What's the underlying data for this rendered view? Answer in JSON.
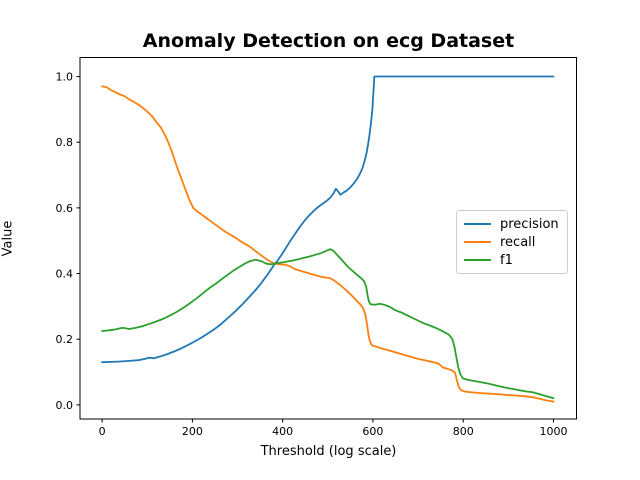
{
  "figure": {
    "title": "Anomaly Detection on ecg Dataset",
    "xlabel": "Threshold (log scale)",
    "ylabel": "Value"
  },
  "chart_data": {
    "type": "line",
    "title": "Anomaly Detection on ecg Dataset",
    "xlabel": "Threshold (log scale)",
    "ylabel": "Value",
    "xlim": [
      -49,
      1051
    ],
    "ylim": [
      -0.043,
      1.058
    ],
    "xticks": [
      0,
      200,
      400,
      600,
      800,
      1000
    ],
    "yticks": [
      0.0,
      0.2,
      0.4,
      0.6,
      0.8,
      1.0
    ],
    "grid": false,
    "legend_position": "center right",
    "frame_color": "#000000",
    "series": [
      {
        "name": "precision",
        "color": "#1f77b4",
        "points": [
          [
            0,
            0.13
          ],
          [
            20,
            0.131
          ],
          [
            40,
            0.132
          ],
          [
            60,
            0.134
          ],
          [
            80,
            0.136
          ],
          [
            95,
            0.14
          ],
          [
            105,
            0.144
          ],
          [
            115,
            0.142
          ],
          [
            130,
            0.148
          ],
          [
            145,
            0.155
          ],
          [
            160,
            0.163
          ],
          [
            175,
            0.172
          ],
          [
            190,
            0.182
          ],
          [
            205,
            0.193
          ],
          [
            220,
            0.205
          ],
          [
            235,
            0.218
          ],
          [
            250,
            0.232
          ],
          [
            265,
            0.248
          ],
          [
            280,
            0.266
          ],
          [
            295,
            0.285
          ],
          [
            310,
            0.305
          ],
          [
            325,
            0.327
          ],
          [
            340,
            0.35
          ],
          [
            352,
            0.37
          ],
          [
            364,
            0.392
          ],
          [
            374,
            0.412
          ],
          [
            382,
            0.428
          ],
          [
            390,
            0.442
          ],
          [
            398,
            0.458
          ],
          [
            408,
            0.48
          ],
          [
            418,
            0.502
          ],
          [
            428,
            0.522
          ],
          [
            438,
            0.542
          ],
          [
            448,
            0.56
          ],
          [
            458,
            0.576
          ],
          [
            468,
            0.59
          ],
          [
            478,
            0.602
          ],
          [
            488,
            0.612
          ],
          [
            498,
            0.622
          ],
          [
            506,
            0.632
          ],
          [
            513,
            0.645
          ],
          [
            518,
            0.658
          ],
          [
            523,
            0.65
          ],
          [
            528,
            0.64
          ],
          [
            534,
            0.646
          ],
          [
            541,
            0.652
          ],
          [
            548,
            0.66
          ],
          [
            556,
            0.672
          ],
          [
            564,
            0.686
          ],
          [
            571,
            0.703
          ],
          [
            577,
            0.722
          ],
          [
            582,
            0.745
          ],
          [
            586,
            0.768
          ],
          [
            589,
            0.792
          ],
          [
            592,
            0.818
          ],
          [
            594,
            0.84
          ],
          [
            596,
            0.862
          ],
          [
            598,
            0.888
          ],
          [
            599,
            0.905
          ],
          [
            600,
            0.93
          ],
          [
            601,
            0.952
          ],
          [
            602,
            0.97
          ],
          [
            603,
            1.0
          ],
          [
            650,
            1.0
          ],
          [
            750,
            1.0
          ],
          [
            850,
            1.0
          ],
          [
            950,
            1.0
          ],
          [
            1000,
            1.0
          ]
        ]
      },
      {
        "name": "recall",
        "color": "#ff7f0e",
        "points": [
          [
            0,
            0.97
          ],
          [
            10,
            0.968
          ],
          [
            20,
            0.958
          ],
          [
            30,
            0.952
          ],
          [
            40,
            0.945
          ],
          [
            50,
            0.94
          ],
          [
            60,
            0.93
          ],
          [
            70,
            0.923
          ],
          [
            80,
            0.915
          ],
          [
            90,
            0.905
          ],
          [
            100,
            0.893
          ],
          [
            110,
            0.88
          ],
          [
            120,
            0.862
          ],
          [
            130,
            0.845
          ],
          [
            140,
            0.82
          ],
          [
            148,
            0.795
          ],
          [
            155,
            0.77
          ],
          [
            162,
            0.74
          ],
          [
            170,
            0.71
          ],
          [
            178,
            0.68
          ],
          [
            186,
            0.65
          ],
          [
            194,
            0.622
          ],
          [
            202,
            0.6
          ],
          [
            212,
            0.588
          ],
          [
            222,
            0.578
          ],
          [
            232,
            0.568
          ],
          [
            242,
            0.558
          ],
          [
            252,
            0.548
          ],
          [
            262,
            0.538
          ],
          [
            272,
            0.528
          ],
          [
            282,
            0.52
          ],
          [
            292,
            0.512
          ],
          [
            302,
            0.503
          ],
          [
            312,
            0.494
          ],
          [
            322,
            0.486
          ],
          [
            332,
            0.477
          ],
          [
            342,
            0.466
          ],
          [
            352,
            0.456
          ],
          [
            360,
            0.448
          ],
          [
            368,
            0.44
          ],
          [
            376,
            0.434
          ],
          [
            384,
            0.43
          ],
          [
            395,
            0.428
          ],
          [
            405,
            0.427
          ],
          [
            415,
            0.423
          ],
          [
            425,
            0.415
          ],
          [
            435,
            0.41
          ],
          [
            445,
            0.406
          ],
          [
            455,
            0.402
          ],
          [
            465,
            0.398
          ],
          [
            475,
            0.394
          ],
          [
            485,
            0.39
          ],
          [
            495,
            0.388
          ],
          [
            505,
            0.386
          ],
          [
            515,
            0.378
          ],
          [
            525,
            0.368
          ],
          [
            535,
            0.356
          ],
          [
            545,
            0.344
          ],
          [
            555,
            0.33
          ],
          [
            565,
            0.316
          ],
          [
            572,
            0.306
          ],
          [
            578,
            0.295
          ],
          [
            583,
            0.275
          ],
          [
            587,
            0.245
          ],
          [
            590,
            0.215
          ],
          [
            593,
            0.195
          ],
          [
            597,
            0.182
          ],
          [
            605,
            0.178
          ],
          [
            615,
            0.174
          ],
          [
            625,
            0.17
          ],
          [
            640,
            0.164
          ],
          [
            655,
            0.158
          ],
          [
            670,
            0.152
          ],
          [
            685,
            0.146
          ],
          [
            700,
            0.14
          ],
          [
            715,
            0.136
          ],
          [
            730,
            0.131
          ],
          [
            745,
            0.126
          ],
          [
            755,
            0.114
          ],
          [
            765,
            0.11
          ],
          [
            775,
            0.105
          ],
          [
            782,
            0.098
          ],
          [
            786,
            0.075
          ],
          [
            790,
            0.055
          ],
          [
            795,
            0.045
          ],
          [
            805,
            0.04
          ],
          [
            820,
            0.038
          ],
          [
            840,
            0.036
          ],
          [
            860,
            0.034
          ],
          [
            880,
            0.032
          ],
          [
            900,
            0.03
          ],
          [
            920,
            0.028
          ],
          [
            940,
            0.026
          ],
          [
            960,
            0.022
          ],
          [
            980,
            0.015
          ],
          [
            1000,
            0.01
          ]
        ]
      },
      {
        "name": "f1",
        "color": "#2ca02c",
        "points": [
          [
            0,
            0.225
          ],
          [
            15,
            0.227
          ],
          [
            30,
            0.23
          ],
          [
            45,
            0.235
          ],
          [
            60,
            0.231
          ],
          [
            75,
            0.235
          ],
          [
            90,
            0.24
          ],
          [
            105,
            0.247
          ],
          [
            120,
            0.254
          ],
          [
            135,
            0.262
          ],
          [
            150,
            0.272
          ],
          [
            165,
            0.283
          ],
          [
            180,
            0.296
          ],
          [
            195,
            0.31
          ],
          [
            210,
            0.325
          ],
          [
            225,
            0.342
          ],
          [
            240,
            0.358
          ],
          [
            255,
            0.372
          ],
          [
            268,
            0.386
          ],
          [
            280,
            0.398
          ],
          [
            292,
            0.41
          ],
          [
            304,
            0.42
          ],
          [
            316,
            0.43
          ],
          [
            328,
            0.438
          ],
          [
            340,
            0.442
          ],
          [
            352,
            0.438
          ],
          [
            364,
            0.43
          ],
          [
            376,
            0.428
          ],
          [
            388,
            0.432
          ],
          [
            400,
            0.434
          ],
          [
            412,
            0.437
          ],
          [
            424,
            0.44
          ],
          [
            436,
            0.444
          ],
          [
            448,
            0.448
          ],
          [
            460,
            0.452
          ],
          [
            472,
            0.457
          ],
          [
            484,
            0.462
          ],
          [
            495,
            0.468
          ],
          [
            505,
            0.474
          ],
          [
            512,
            0.47
          ],
          [
            520,
            0.458
          ],
          [
            528,
            0.446
          ],
          [
            536,
            0.434
          ],
          [
            545,
            0.42
          ],
          [
            555,
            0.408
          ],
          [
            565,
            0.396
          ],
          [
            572,
            0.388
          ],
          [
            580,
            0.378
          ],
          [
            585,
            0.36
          ],
          [
            588,
            0.335
          ],
          [
            591,
            0.315
          ],
          [
            595,
            0.306
          ],
          [
            605,
            0.305
          ],
          [
            615,
            0.308
          ],
          [
            625,
            0.305
          ],
          [
            638,
            0.298
          ],
          [
            650,
            0.288
          ],
          [
            665,
            0.28
          ],
          [
            680,
            0.27
          ],
          [
            695,
            0.26
          ],
          [
            710,
            0.25
          ],
          [
            725,
            0.242
          ],
          [
            740,
            0.234
          ],
          [
            755,
            0.224
          ],
          [
            768,
            0.214
          ],
          [
            776,
            0.2
          ],
          [
            781,
            0.175
          ],
          [
            785,
            0.145
          ],
          [
            789,
            0.115
          ],
          [
            794,
            0.092
          ],
          [
            800,
            0.08
          ],
          [
            815,
            0.075
          ],
          [
            835,
            0.07
          ],
          [
            855,
            0.065
          ],
          [
            875,
            0.058
          ],
          [
            895,
            0.052
          ],
          [
            915,
            0.047
          ],
          [
            935,
            0.042
          ],
          [
            955,
            0.038
          ],
          [
            975,
            0.03
          ],
          [
            990,
            0.024
          ],
          [
            1000,
            0.02
          ]
        ]
      }
    ]
  }
}
